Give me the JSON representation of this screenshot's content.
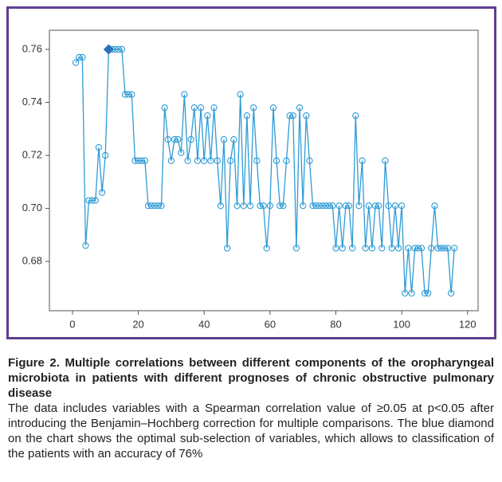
{
  "chart_data": {
    "type": "line",
    "color": "#2e9bd6",
    "marker_color": "#2e9bd6",
    "highlight_color": "#2a72b8",
    "highlight_x": 11,
    "x": [
      1,
      2,
      3,
      4,
      5,
      6,
      7,
      8,
      9,
      10,
      11,
      12,
      13,
      14,
      15,
      16,
      17,
      18,
      19,
      20,
      21,
      22,
      23,
      24,
      25,
      26,
      27,
      28,
      29,
      30,
      31,
      32,
      33,
      34,
      35,
      36,
      37,
      38,
      39,
      40,
      41,
      42,
      43,
      44,
      45,
      46,
      47,
      48,
      49,
      50,
      51,
      52,
      53,
      54,
      55,
      56,
      57,
      58,
      59,
      60,
      61,
      62,
      63,
      64,
      65,
      66,
      67,
      68,
      69,
      70,
      71,
      72,
      73,
      74,
      75,
      76,
      77,
      78,
      79,
      80,
      81,
      82,
      83,
      84,
      85,
      86,
      87,
      88,
      89,
      90,
      91,
      92,
      93,
      94,
      95,
      96,
      97,
      98,
      99,
      100,
      101,
      102,
      103,
      104,
      105,
      106,
      107,
      108,
      109,
      110,
      111,
      112,
      113,
      114,
      115,
      116
    ],
    "values": [
      0.755,
      0.757,
      0.757,
      0.686,
      0.703,
      0.703,
      0.703,
      0.723,
      0.706,
      0.72,
      0.76,
      0.76,
      0.76,
      0.76,
      0.76,
      0.743,
      0.743,
      0.743,
      0.718,
      0.718,
      0.718,
      0.718,
      0.701,
      0.701,
      0.701,
      0.701,
      0.701,
      0.738,
      0.726,
      0.718,
      0.726,
      0.726,
      0.721,
      0.743,
      0.718,
      0.726,
      0.738,
      0.718,
      0.738,
      0.718,
      0.735,
      0.718,
      0.738,
      0.718,
      0.701,
      0.726,
      0.685,
      0.718,
      0.726,
      0.701,
      0.743,
      0.701,
      0.735,
      0.701,
      0.738,
      0.718,
      0.701,
      0.701,
      0.685,
      0.701,
      0.738,
      0.718,
      0.701,
      0.701,
      0.718,
      0.735,
      0.735,
      0.685,
      0.738,
      0.701,
      0.735,
      0.718,
      0.701,
      0.701,
      0.701,
      0.701,
      0.701,
      0.701,
      0.701,
      0.685,
      0.701,
      0.685,
      0.701,
      0.701,
      0.685,
      0.735,
      0.701,
      0.718,
      0.685,
      0.701,
      0.685,
      0.701,
      0.701,
      0.685,
      0.718,
      0.701,
      0.685,
      0.701,
      0.685,
      0.701,
      0.668,
      0.685,
      0.668,
      0.685,
      0.685,
      0.685,
      0.668,
      0.668,
      0.685,
      0.701,
      0.685,
      0.685,
      0.685,
      0.685,
      0.668,
      0.685
    ],
    "xlim": [
      -7,
      123.2
    ],
    "ylim": [
      0.6614,
      0.7672
    ],
    "xticks": [
      0,
      20,
      40,
      60,
      80,
      100,
      120
    ],
    "yticks": [
      0.68,
      {
        "value": 0.7,
        "label": "0.70"
      },
      0.72,
      0.74,
      0.76
    ]
  },
  "caption": {
    "title": "Figure 2. Multiple correlations between different components of the oropharyngeal microbiota in patients with different prognoses of chronic obstructive pulmonary disease",
    "text": "The data includes variables with a Spearman correlation value of ≥0.05 at p<0.05 after introducing the Benjamin–Hochberg correction for multiple comparisons. The blue diamond on the chart shows the optimal sub-selection of variables, which allows to classification of the patients with an accuracy of 76%"
  }
}
